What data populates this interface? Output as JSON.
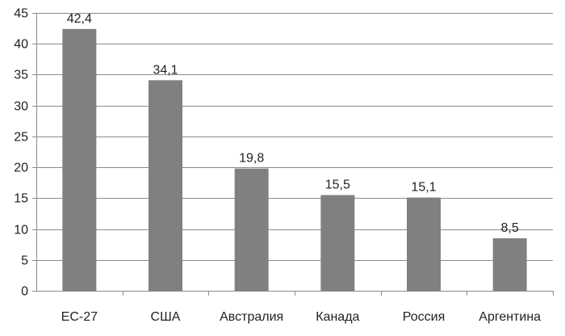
{
  "chart_data": {
    "type": "bar",
    "categories": [
      "ЕС-27",
      "США",
      "Австралия",
      "Канада",
      "Россия",
      "Аргентина"
    ],
    "values": [
      42.4,
      34.1,
      19.8,
      15.5,
      15.1,
      8.5
    ],
    "value_labels": [
      "42,4",
      "34,1",
      "19,8",
      "15,5",
      "15,1",
      "8,5"
    ],
    "title": "",
    "xlabel": "",
    "ylabel": "",
    "ylim": [
      0,
      45
    ],
    "yticks": [
      0,
      5,
      10,
      15,
      20,
      25,
      30,
      35,
      40,
      45
    ],
    "grid": true,
    "legend": "none",
    "bar_color": "#808080",
    "grid_color": "#8c8c8c",
    "axis_color": "#8c8c8c"
  }
}
